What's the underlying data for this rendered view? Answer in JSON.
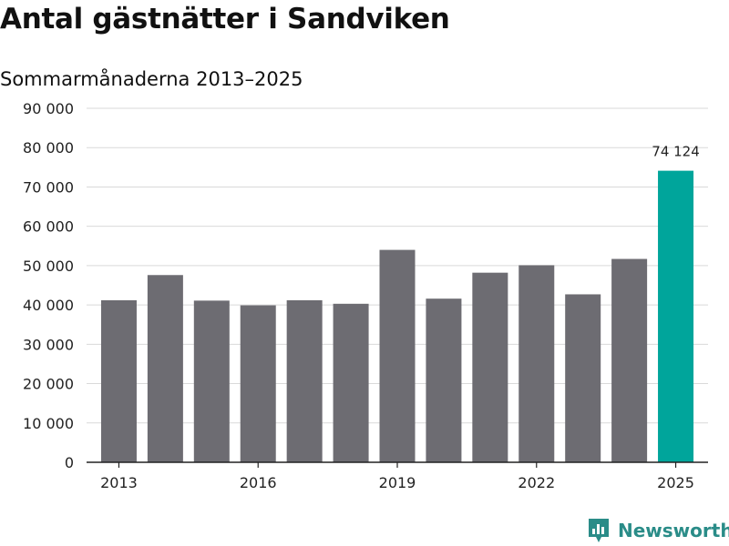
{
  "title": "Antal gästnätter i Sandviken",
  "subtitle": "Sommarmånaderna 2013–2025",
  "brand": {
    "name": "Newsworthy",
    "icon": "newsworthy-logo-icon"
  },
  "colors": {
    "bar": "#6d6c72",
    "highlight": "#00a59b",
    "grid": "#d9d9d9",
    "axis": "#222222",
    "brand": "#2a8c88"
  },
  "chart_data": {
    "type": "bar",
    "categories": [
      "2013",
      "2014",
      "2015",
      "2016",
      "2017",
      "2018",
      "2019",
      "2020",
      "2021",
      "2022",
      "2023",
      "2024",
      "2025"
    ],
    "values": [
      41200,
      47600,
      41100,
      39900,
      41200,
      40300,
      54000,
      41600,
      48200,
      50100,
      42700,
      51700,
      74124
    ],
    "highlight_index": 12,
    "data_labels": [
      {
        "index": 12,
        "text": "74 124"
      }
    ],
    "x_tick_labels": [
      "2013",
      "2016",
      "2019",
      "2022",
      "2025"
    ],
    "y_ticks": [
      0,
      10000,
      20000,
      30000,
      40000,
      50000,
      60000,
      70000,
      80000,
      90000
    ],
    "y_tick_labels": [
      "0",
      "10 000",
      "20 000",
      "30 000",
      "40 000",
      "50 000",
      "60 000",
      "70 000",
      "80 000",
      "90 000"
    ],
    "ylim": [
      0,
      90000
    ],
    "grid": true,
    "legend": "none"
  }
}
